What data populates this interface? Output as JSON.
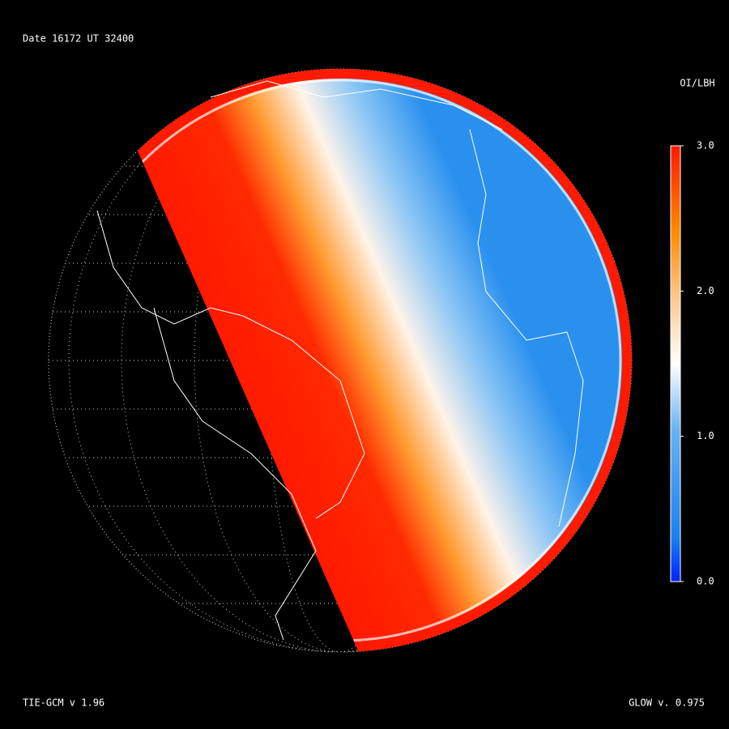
{
  "header": {
    "title": "Date 16172  UT 32400"
  },
  "colorbar": {
    "label": "OI/LBH",
    "lim": [
      0,
      3
    ],
    "ticks": [
      {
        "value": 0,
        "label": "0.0"
      },
      {
        "value": 1,
        "label": "1.0"
      },
      {
        "value": 2,
        "label": "2.0"
      },
      {
        "value": 3,
        "label": "3.0"
      }
    ]
  },
  "footer": {
    "left": "TIE-GCM v 1.96",
    "right": "GLOW v. 0.975"
  }
}
